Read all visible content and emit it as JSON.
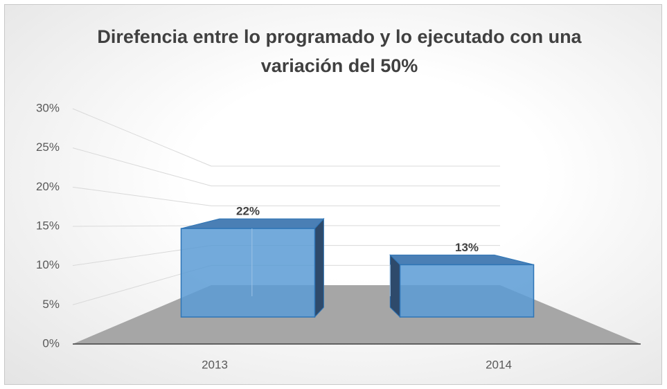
{
  "chart_data": {
    "type": "bar3d",
    "title": "Direfencia entre lo programado y lo ejecutado con una variación del 50%",
    "categories": [
      "2013",
      "2014"
    ],
    "values": [
      22,
      13
    ],
    "value_labels": [
      "22%",
      "13%"
    ],
    "color": "#5b9bd5",
    "ylim": [
      0,
      30
    ],
    "yticks": [
      {
        "value": 0,
        "label": "0%"
      },
      {
        "value": 5,
        "label": "5%"
      },
      {
        "value": 10,
        "label": "10%"
      },
      {
        "value": 15,
        "label": "15%"
      },
      {
        "value": 20,
        "label": "20%"
      },
      {
        "value": 25,
        "label": "25%"
      },
      {
        "value": 30,
        "label": "30%"
      }
    ],
    "grid": true
  }
}
